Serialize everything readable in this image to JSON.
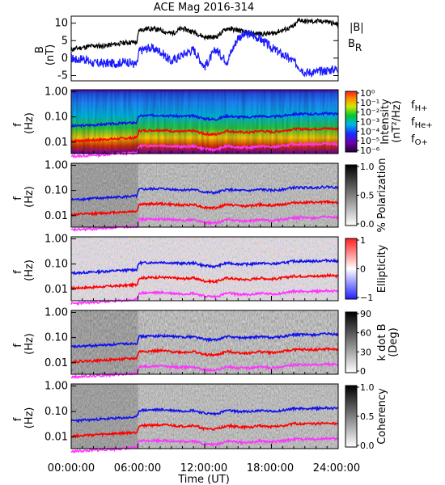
{
  "title": "ACE Mag 2016-314",
  "colors": {
    "B_total": "#000000",
    "B_R": "#1a1aff",
    "f_H": "#1111ee",
    "f_He": "#ff0000",
    "f_O": "#ff33ff"
  },
  "chart_data": [
    {
      "panel": "magnetic-field",
      "type": "line",
      "ylabel": "B",
      "yunit": "(nT)",
      "ylim": [
        -6.5,
        12
      ],
      "yticks": [
        "10",
        "5",
        "0",
        "-5"
      ],
      "series": [
        {
          "name": "|B|",
          "x": [
            0,
            1,
            2,
            3,
            4,
            5,
            5.9,
            6.1,
            7,
            8,
            9,
            10,
            11,
            12,
            13,
            14,
            15,
            16,
            17,
            18,
            19,
            20,
            20.5,
            21,
            22,
            23,
            24
          ],
          "y": [
            2.5,
            3,
            3.5,
            3.5,
            4,
            4.5,
            4.5,
            8,
            8.5,
            8,
            7,
            8.5,
            7.5,
            6,
            6,
            8.5,
            8,
            7,
            7,
            7,
            8,
            9,
            11,
            10.5,
            10.5,
            10.5,
            9.5
          ]
        },
        {
          "name": "B_R",
          "x": [
            0,
            0.5,
            1,
            2,
            3,
            4,
            5,
            5.9,
            6.1,
            7,
            8,
            9,
            10,
            11,
            12,
            13,
            14,
            15,
            16,
            17,
            18,
            19,
            20,
            21,
            22,
            23,
            24
          ],
          "y": [
            0,
            -0.5,
            0,
            -1.5,
            -1.5,
            -1.5,
            -1,
            -2,
            2,
            3,
            2,
            -1,
            1,
            2.5,
            -2.5,
            2.5,
            -1,
            6,
            7,
            5.5,
            3,
            1,
            -1,
            -4,
            -4,
            -3.5,
            -3
          ]
        }
      ]
    },
    {
      "panel": "intensity",
      "type": "heatmap",
      "ylabel": "f",
      "yunit": "(Hz)",
      "log_y": true,
      "cbar_label": "Intensity",
      "cbar_unit": "(nT²/Hz)",
      "cbar_ticks": [
        "10⁰",
        "10⁻¹",
        "10⁻²",
        "10⁻³",
        "10⁻⁴",
        "10⁻⁵",
        "10⁻⁶"
      ],
      "legend": [
        "f",
        "H+",
        "f",
        "He+",
        "f",
        "O+"
      ]
    },
    {
      "panel": "polarization",
      "type": "heatmap",
      "ylabel": "f",
      "yunit": "(Hz)",
      "log_y": true,
      "cbar_label": "% Polarization",
      "cbar_ticks": [
        "1.0",
        "0.5",
        "0.0"
      ]
    },
    {
      "panel": "ellipticity",
      "type": "heatmap",
      "ylabel": "f",
      "yunit": "(Hz)",
      "log_y": true,
      "cbar_label": "Ellipticity",
      "cbar_ticks": [
        "1",
        "0",
        "−1"
      ]
    },
    {
      "panel": "wave-normal-angle",
      "type": "heatmap",
      "ylabel": "f",
      "yunit": "(Hz)",
      "log_y": true,
      "cbar_label": "k dot B",
      "cbar_unit": "(Deg)",
      "cbar_ticks": [
        "90",
        "60",
        "30",
        "0"
      ]
    },
    {
      "panel": "coherency",
      "type": "heatmap",
      "ylabel": "f",
      "yunit": "(Hz)",
      "log_y": true,
      "cbar_label": "Coherency",
      "cbar_ticks": [
        "1.0",
        "0.5",
        "0.0"
      ]
    }
  ],
  "f_axis": {
    "yticks": [
      "1.00",
      "0.10",
      "0.01"
    ]
  },
  "gyrofrequency_curves": {
    "x": [
      0,
      2,
      4,
      5.9,
      6.1,
      8,
      10,
      11,
      12,
      13,
      14,
      15,
      16,
      17,
      18,
      19,
      20,
      21,
      22,
      23,
      24
    ],
    "f_H": [
      0.043,
      0.048,
      0.054,
      0.06,
      0.11,
      0.118,
      0.105,
      0.11,
      0.085,
      0.08,
      0.11,
      0.1,
      0.098,
      0.11,
      0.1,
      0.11,
      0.13,
      0.13,
      0.13,
      0.14,
      0.13
    ],
    "f_He": [
      0.011,
      0.012,
      0.0135,
      0.015,
      0.028,
      0.03,
      0.026,
      0.028,
      0.021,
      0.02,
      0.028,
      0.025,
      0.024,
      0.028,
      0.025,
      0.028,
      0.033,
      0.033,
      0.033,
      0.035,
      0.033
    ],
    "f_O": [
      0.0027,
      0.003,
      0.0034,
      0.0038,
      0.007,
      0.0074,
      0.0065,
      0.007,
      0.0053,
      0.005,
      0.007,
      0.0063,
      0.006,
      0.007,
      0.0063,
      0.007,
      0.0082,
      0.0082,
      0.0082,
      0.0088,
      0.0082
    ]
  },
  "x_axis": {
    "label": "Time (UT)",
    "xlim": [
      0,
      24
    ],
    "ticks": [
      "00:00:00",
      "06:00:00",
      "12:00:00",
      "18:00:00",
      "24:00:00"
    ]
  }
}
